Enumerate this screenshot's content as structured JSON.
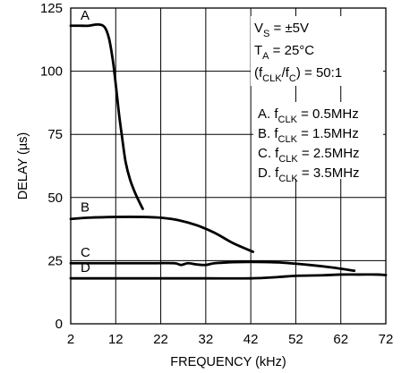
{
  "chart_data": {
    "type": "line",
    "title": "",
    "xlabel": "FREQUENCY (kHz)",
    "ylabel": "DELAY (µs)",
    "xlim": [
      2,
      72
    ],
    "ylim": [
      0,
      125
    ],
    "x_ticks": [
      2,
      12,
      22,
      32,
      42,
      52,
      62,
      72
    ],
    "y_ticks": [
      0,
      25,
      50,
      75,
      100,
      125
    ],
    "grid": true,
    "conditions": {
      "vs": {
        "main": "V",
        "sub": "S",
        "rest": " = ±5V"
      },
      "ta": {
        "main": "T",
        "sub": "A",
        "rest": " = 25°C"
      },
      "ratio": {
        "open": "(f",
        "sub1": "CLK",
        "mid": "/f",
        "sub2": "C",
        "rest": ") = 50:1"
      }
    },
    "legend": [
      {
        "letter": "A.",
        "main": " f",
        "sub": "CLK",
        "rest": " = 0.5MHz"
      },
      {
        "letter": "B.",
        "main": " f",
        "sub": "CLK",
        "rest": " = 1.5MHz"
      },
      {
        "letter": "C.",
        "main": " f",
        "sub": "CLK",
        "rest": " = 2.5MHz"
      },
      {
        "letter": "D.",
        "main": " f",
        "sub": "CLK",
        "rest": " = 3.5MHz"
      }
    ],
    "series": [
      {
        "name": "A",
        "x": [
          2,
          4,
          6,
          8,
          9.5,
          10.5,
          11.3,
          11.8,
          12.3,
          12.8,
          13.4,
          14.2,
          15.2,
          16.5,
          18
        ],
        "y": [
          118,
          118,
          118,
          118.5,
          117.5,
          113,
          105,
          98,
          90,
          82,
          74,
          64,
          57,
          51,
          45.5
        ]
      },
      {
        "name": "B",
        "x": [
          2,
          6,
          12,
          18,
          22,
          26,
          30,
          34,
          38,
          42.5
        ],
        "y": [
          41.5,
          42,
          42.3,
          42.3,
          42,
          41,
          39,
          36,
          32,
          28.5
        ]
      },
      {
        "name": "C",
        "x": [
          2,
          10,
          20,
          25,
          26.5,
          28,
          30,
          32,
          34,
          38,
          42,
          48,
          55,
          60,
          65
        ],
        "y": [
          24,
          24,
          24,
          24,
          23.3,
          24,
          23.5,
          23.3,
          24,
          24.4,
          24.5,
          24.3,
          23.3,
          22.3,
          21
        ]
      },
      {
        "name": "D",
        "x": [
          2,
          12,
          22,
          32,
          42,
          48,
          52,
          58,
          62,
          66,
          70,
          72
        ],
        "y": [
          18,
          18,
          18,
          18,
          18,
          18.5,
          19,
          19.2,
          19.5,
          19.5,
          19.5,
          19.3
        ]
      }
    ]
  }
}
